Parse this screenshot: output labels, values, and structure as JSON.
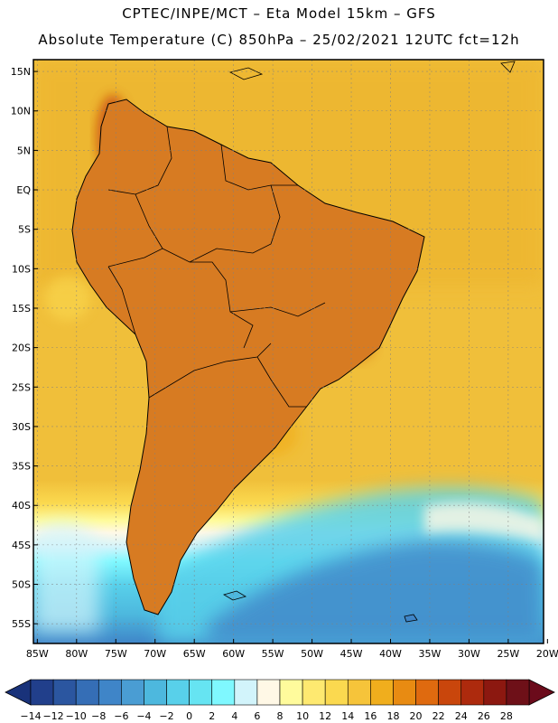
{
  "header": {
    "line1": "CPTEC/INPE/MCT –  Eta Model 15km – GFS",
    "line2": "Absolute Temperature (C) 850hPa – 25/02/2021 12UTC fct=12h"
  },
  "map": {
    "lat_labels": [
      "15N",
      "10N",
      "5N",
      "EQ",
      "5S",
      "10S",
      "15S",
      "20S",
      "25S",
      "30S",
      "35S",
      "40S",
      "45S",
      "50S",
      "55S"
    ],
    "lon_labels": [
      "85W",
      "80W",
      "75W",
      "70W",
      "65W",
      "60W",
      "55W",
      "50W",
      "45W",
      "40W",
      "35W",
      "30W",
      "25W",
      "20W"
    ],
    "lat_range": [
      16.5,
      -57.5
    ],
    "lon_range": [
      -85.5,
      -20.5
    ],
    "ocean_color": "#f0bf3a",
    "land_color": "#d77b22"
  },
  "colorbar": {
    "labels": [
      "-14",
      "-12",
      "-10",
      "-8",
      "-6",
      "-4",
      "-2",
      "0",
      "2",
      "4",
      "6",
      "8",
      "10",
      "12",
      "14",
      "16",
      "18",
      "20",
      "22",
      "24",
      "26",
      "28"
    ],
    "under_color": "#19327a",
    "over_color": "#6b0b1b",
    "colors": [
      "#213f8b",
      "#2b56a0",
      "#356eb6",
      "#3f85c8",
      "#4a9dd3",
      "#4db8de",
      "#58d0ea",
      "#66e4f2",
      "#7ff8ff",
      "#d2f4fb",
      "#fff8e6",
      "#fffb9c",
      "#fee970",
      "#fbd94f",
      "#f6c43a",
      "#f0ae1d",
      "#e88b12",
      "#df6a0f",
      "#c9460c",
      "#ad2a0d",
      "#8c1810",
      "#6e1018"
    ]
  }
}
